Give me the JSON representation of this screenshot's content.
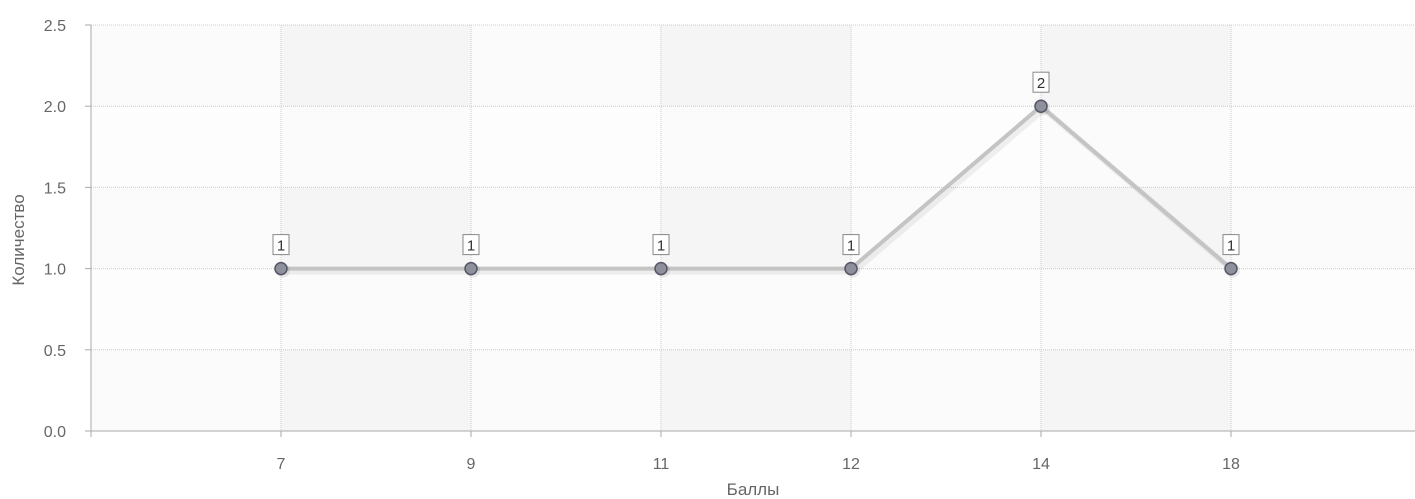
{
  "chart_data": {
    "type": "line",
    "title": "",
    "xlabel": "Баллы",
    "ylabel": "Количество",
    "categories": [
      "7",
      "9",
      "11",
      "12",
      "14",
      "18"
    ],
    "series": [
      {
        "values": [
          1,
          1,
          1,
          1,
          2,
          1
        ]
      }
    ],
    "ylim": [
      0,
      2.5
    ],
    "yticks": [
      "0.0",
      "0.5",
      "1.0",
      "1.5",
      "2.0",
      "2.5"
    ],
    "data_labels": [
      "1",
      "1",
      "1",
      "1",
      "2",
      "1"
    ],
    "grid": true,
    "legend": "none",
    "colors": {
      "line": "#c4c4c4",
      "marker_fill": "#8e909c",
      "marker_stroke": "#555766",
      "band_dark": "#f5f5f5",
      "band_light": "#fbfbfb",
      "grid": "#cccccc",
      "axis": "#aaaaaa"
    }
  }
}
